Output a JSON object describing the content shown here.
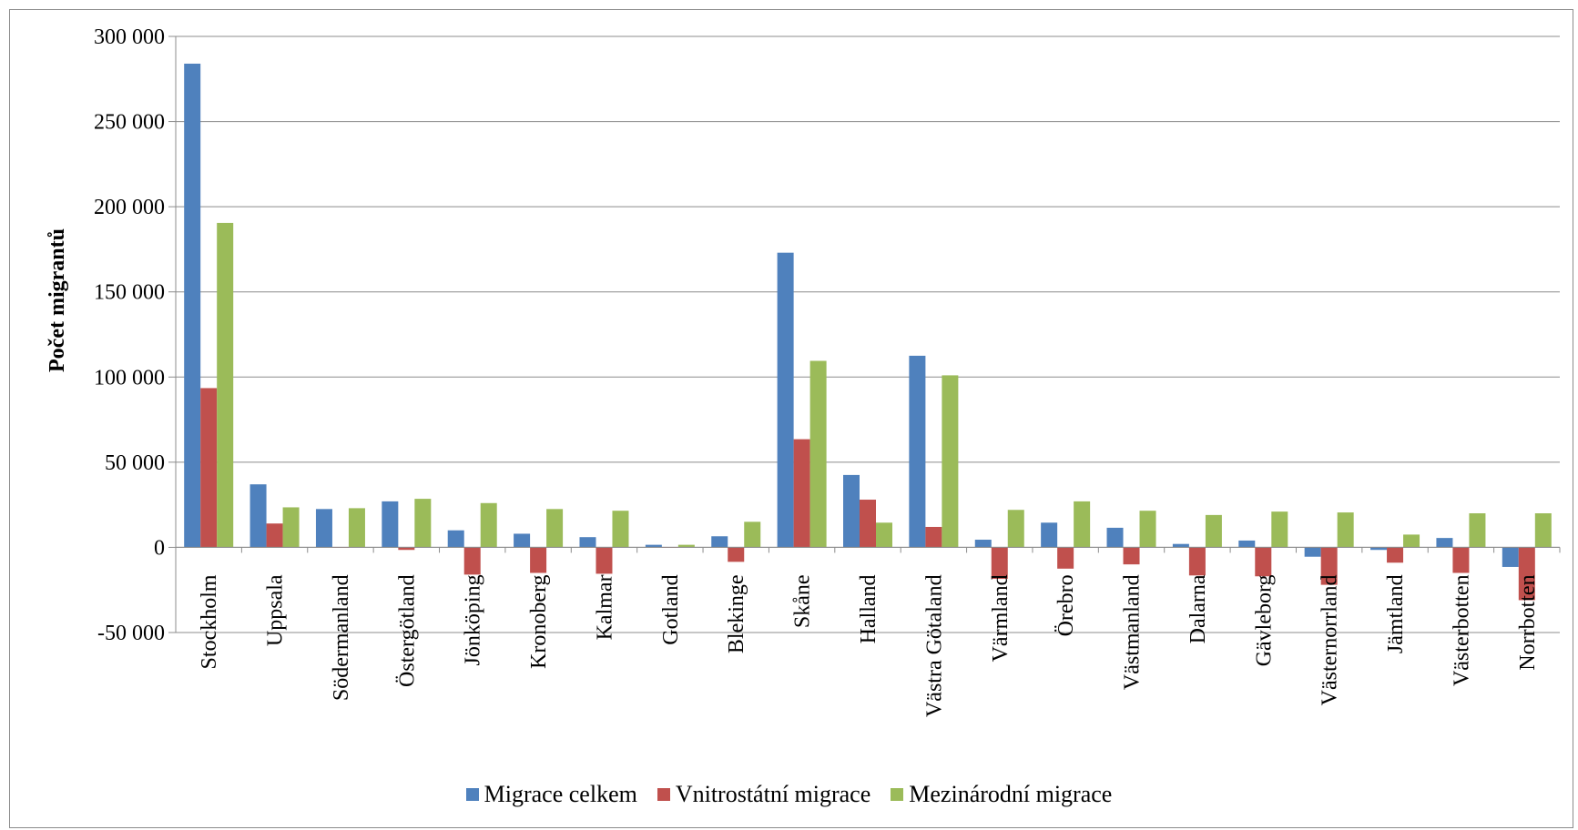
{
  "chart_data": {
    "type": "bar",
    "title": "",
    "xlabel": "",
    "ylabel": "Počet migrantů",
    "ylim": [
      -50000,
      300000
    ],
    "yticks": [
      -50000,
      0,
      50000,
      100000,
      150000,
      200000,
      250000,
      300000
    ],
    "ytick_labels": [
      "-50 000",
      "0",
      "50 000",
      "100 000",
      "150 000",
      "200 000",
      "250 000",
      "300 000"
    ],
    "grid": true,
    "legend_position": "bottom",
    "categories": [
      "Stockholm",
      "Uppsala",
      "Södermanland",
      "Östergötland",
      "Jönköping",
      "Kronoberg",
      "Kalmar",
      "Gotland",
      "Blekinge",
      "Skåne",
      "Halland",
      "Västra Götaland",
      "Värmland",
      "Örebro",
      "Västmanland",
      "Dalarna",
      "Gävleborg",
      "Västernorrland",
      "Jämtland",
      "Västerbotten",
      "Norrbotten"
    ],
    "series": [
      {
        "name": "Migrace celkem",
        "color": "#4f81bd",
        "values": [
          284000,
          37000,
          22500,
          27000,
          10000,
          8000,
          6000,
          1500,
          6500,
          173000,
          42500,
          112500,
          4500,
          14500,
          11500,
          2000,
          4000,
          -5500,
          -1500,
          5500,
          -11500
        ]
      },
      {
        "name": "Vnitrostátní migrace",
        "color": "#c0504d",
        "values": [
          93500,
          14000,
          0,
          -1500,
          -16000,
          -15000,
          -15500,
          0,
          -8500,
          63500,
          28000,
          12000,
          -18500,
          -12500,
          -10000,
          -16500,
          -17000,
          -22000,
          -9000,
          -15000,
          -31000
        ]
      },
      {
        "name": "Mezinárodní migrace",
        "color": "#9bbb59",
        "values": [
          190500,
          23500,
          23000,
          28500,
          26000,
          22500,
          21500,
          1500,
          15000,
          109500,
          14500,
          101000,
          22000,
          27000,
          21500,
          19000,
          21000,
          20500,
          7500,
          20000,
          20000
        ]
      }
    ]
  }
}
